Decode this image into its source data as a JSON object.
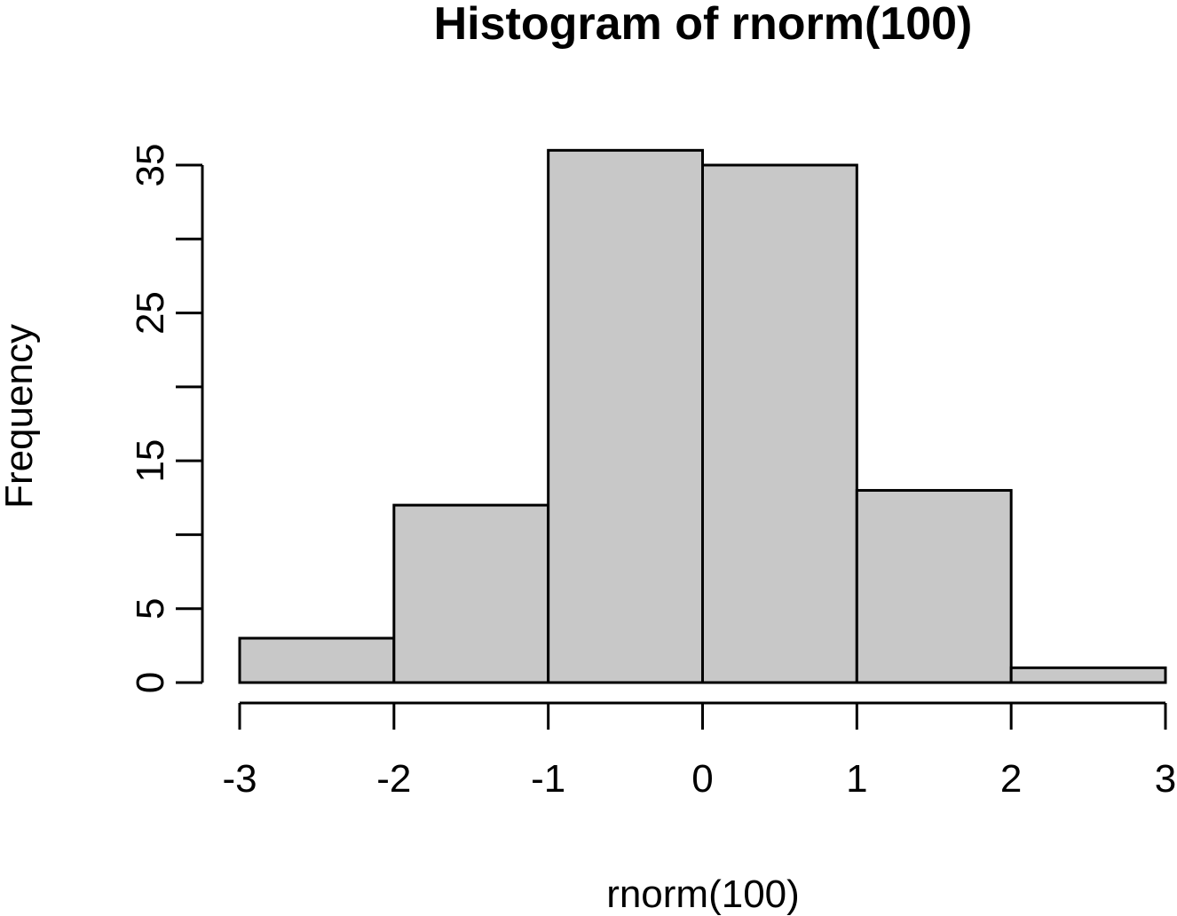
{
  "chart_data": {
    "type": "bar",
    "title": "Histogram of rnorm(100)",
    "xlabel": "rnorm(100)",
    "ylabel": "Frequency",
    "bins": [
      {
        "from": -3,
        "to": -2,
        "count": 3
      },
      {
        "from": -2,
        "to": -1,
        "count": 12
      },
      {
        "from": -1,
        "to": 0,
        "count": 36
      },
      {
        "from": 0,
        "to": 1,
        "count": 35
      },
      {
        "from": 1,
        "to": 2,
        "count": 13
      },
      {
        "from": 2,
        "to": 3,
        "count": 1
      }
    ],
    "xlim": [
      -3,
      3
    ],
    "ylim": [
      0,
      36
    ],
    "x_ticks": [
      "-3",
      "-2",
      "-1",
      "0",
      "1",
      "2",
      "3"
    ],
    "y_ticks": [
      0,
      5,
      10,
      15,
      20,
      25,
      30,
      35
    ],
    "y_tick_labels": [
      "0",
      "5",
      "15",
      "25",
      "35"
    ],
    "grid": false,
    "bar_color": "#c8c8c8",
    "line_color": "#000000"
  }
}
